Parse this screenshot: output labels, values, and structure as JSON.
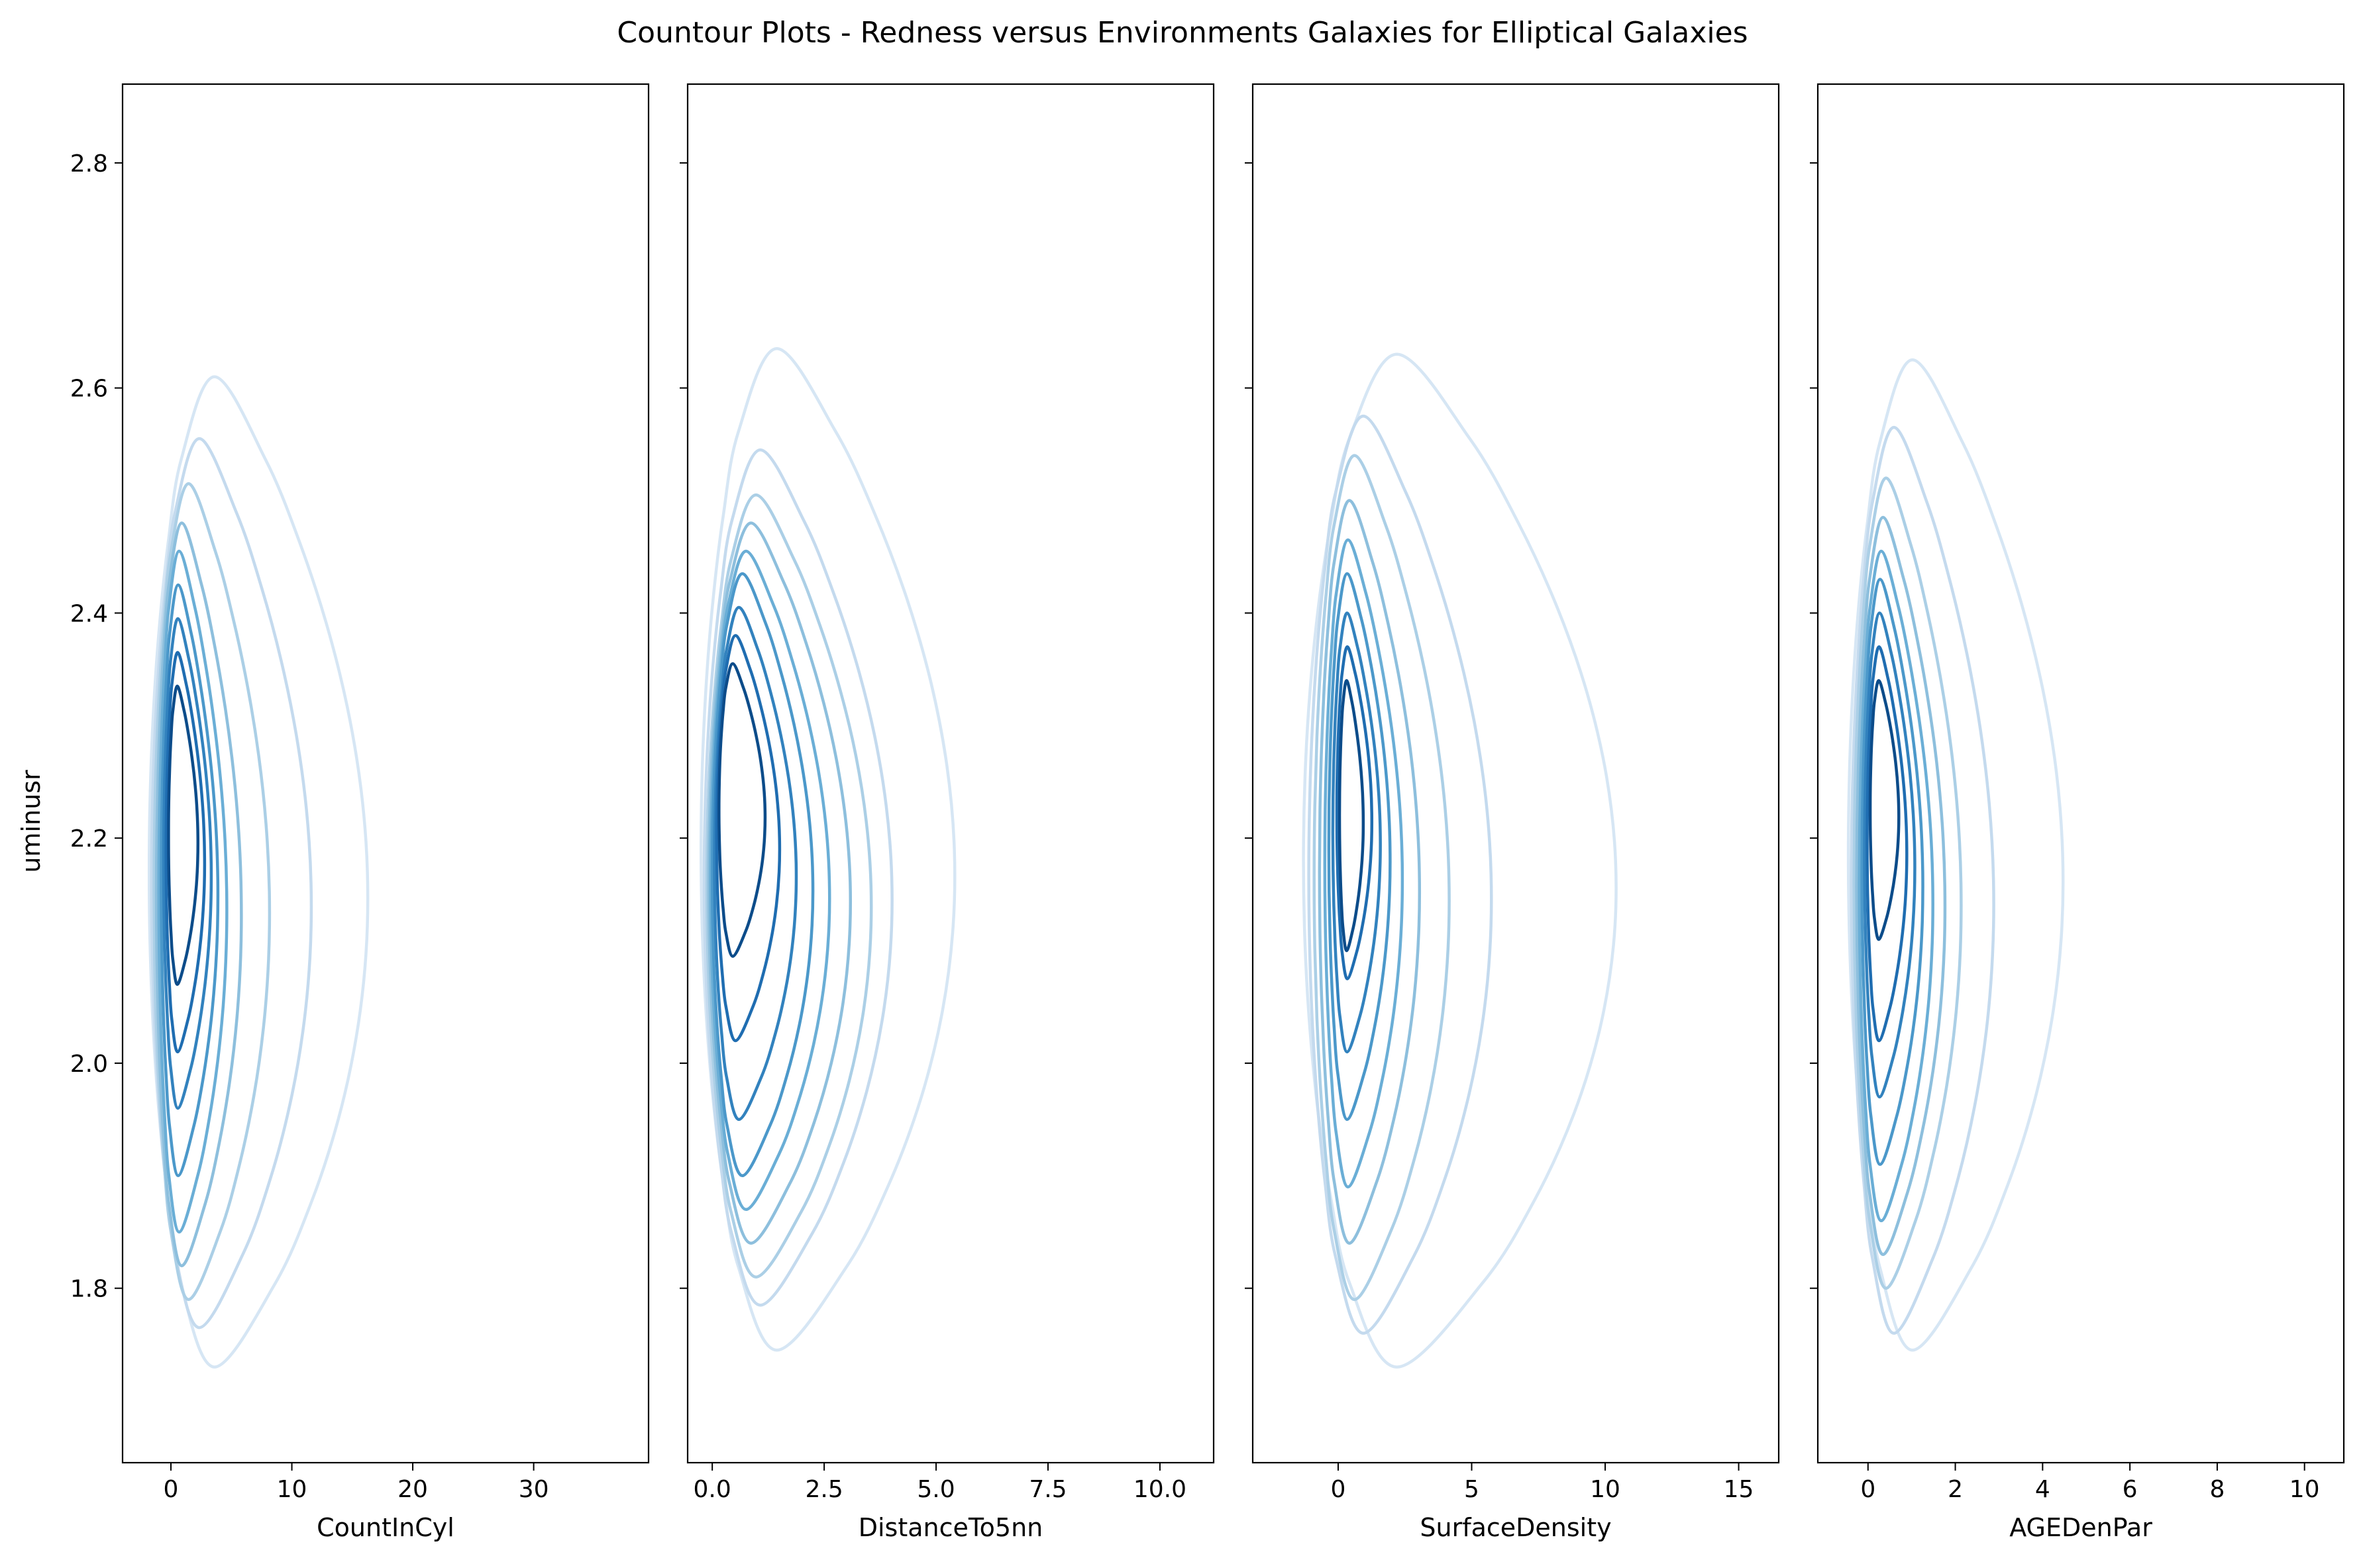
{
  "chart_data": {
    "type": "contour",
    "title": "Countour Plots - Redness versus Environments Galaxies  for Elliptical Galaxies",
    "ylabel": "uminusr",
    "sharey": true,
    "ylim": [
      1.645,
      2.87
    ],
    "yticks": [
      "1.8",
      "2.0",
      "2.2",
      "2.4",
      "2.6",
      "2.8"
    ],
    "ytick_values": [
      1.8,
      2.0,
      2.2,
      2.4,
      2.6,
      2.8
    ],
    "colormap": "Blues",
    "n_levels": 10,
    "level_colors": [
      "#e6f0f9",
      "#d6e6f4",
      "#c4daee",
      "#abcfe6",
      "#8dbfdd",
      "#6aaed6",
      "#4b98ca",
      "#3282be",
      "#1f6db1",
      "#0c4c8a"
    ],
    "grid": false,
    "legend": "none",
    "panels": [
      {
        "xlabel": "CountInCyl",
        "xlim": [
          -4,
          39.5
        ],
        "xticks": [
          "0",
          "10",
          "20",
          "30"
        ],
        "xtick_values": [
          0,
          10,
          20,
          30
        ],
        "contours": [
          {
            "y_range": [
              1.73,
              2.61
            ],
            "x_max": 17.5,
            "x_min": -1.8
          },
          {
            "y_range": [
              1.765,
              2.555
            ],
            "x_max": 12.5,
            "x_min": -1.6
          },
          {
            "y_range": [
              1.79,
              2.515
            ],
            "x_max": 8.8,
            "x_min": -1.4
          },
          {
            "y_range": [
              1.82,
              2.48
            ],
            "x_max": 6.3,
            "x_min": -1.2
          },
          {
            "y_range": [
              1.85,
              2.455
            ],
            "x_max": 5.0,
            "x_min": -1.0
          },
          {
            "y_range": [
              1.9,
              2.425
            ],
            "x_max": 4.2,
            "x_min": -0.8
          },
          {
            "y_range": [
              1.96,
              2.395
            ],
            "x_max": 3.6,
            "x_min": -0.6
          },
          {
            "y_range": [
              2.01,
              2.365
            ],
            "x_max": 3.0,
            "x_min": -0.4
          },
          {
            "y_range": [
              2.07,
              2.335
            ],
            "x_max": 2.4,
            "x_min": -0.2
          }
        ]
      },
      {
        "xlabel": "DistanceTo5nn",
        "xlim": [
          -0.55,
          11.2
        ],
        "xticks": [
          "0.0",
          "2.5",
          "5.0",
          "7.5",
          "10.0"
        ],
        "xtick_values": [
          0,
          2.5,
          5,
          7.5,
          10
        ],
        "contours": [
          {
            "y_range": [
              1.745,
              2.635
            ],
            "x_max": 5.8,
            "x_min": -0.25
          },
          {
            "y_range": [
              1.785,
              2.545
            ],
            "x_max": 4.3,
            "x_min": -0.18
          },
          {
            "y_range": [
              1.81,
              2.505
            ],
            "x_max": 3.8,
            "x_min": -0.12
          },
          {
            "y_range": [
              1.84,
              2.48
            ],
            "x_max": 3.3,
            "x_min": -0.08
          },
          {
            "y_range": [
              1.87,
              2.455
            ],
            "x_max": 2.8,
            "x_min": -0.04
          },
          {
            "y_range": [
              1.9,
              2.435
            ],
            "x_max": 2.4,
            "x_min": 0.0
          },
          {
            "y_range": [
              1.95,
              2.405
            ],
            "x_max": 2.0,
            "x_min": 0.05
          },
          {
            "y_range": [
              2.02,
              2.38
            ],
            "x_max": 1.6,
            "x_min": 0.1
          },
          {
            "y_range": [
              2.095,
              2.355
            ],
            "x_max": 1.25,
            "x_min": 0.15
          }
        ]
      },
      {
        "xlabel": "SurfaceDensity",
        "xlim": [
          -3.2,
          16.5
        ],
        "xticks": [
          "0",
          "5",
          "10",
          "15"
        ],
        "xtick_values": [
          0,
          5,
          10,
          15
        ],
        "contours": [
          {
            "y_range": [
              1.73,
              2.63
            ],
            "x_max": 11.2,
            "x_min": -1.3
          },
          {
            "y_range": [
              1.76,
              2.575
            ],
            "x_max": 6.2,
            "x_min": -1.1
          },
          {
            "y_range": [
              1.79,
              2.54
            ],
            "x_max": 4.5,
            "x_min": -0.9
          },
          {
            "y_range": [
              1.84,
              2.5
            ],
            "x_max": 3.3,
            "x_min": -0.7
          },
          {
            "y_range": [
              1.89,
              2.465
            ],
            "x_max": 2.6,
            "x_min": -0.5
          },
          {
            "y_range": [
              1.95,
              2.435
            ],
            "x_max": 2.1,
            "x_min": -0.35
          },
          {
            "y_range": [
              2.01,
              2.4
            ],
            "x_max": 1.7,
            "x_min": -0.2
          },
          {
            "y_range": [
              2.075,
              2.37
            ],
            "x_max": 1.35,
            "x_min": -0.05
          },
          {
            "y_range": [
              2.1,
              2.34
            ],
            "x_max": 1.0,
            "x_min": 0.05
          }
        ]
      },
      {
        "xlabel": "AGEDenPar",
        "xlim": [
          -1.15,
          10.9
        ],
        "xticks": [
          "0",
          "2",
          "4",
          "6",
          "8",
          "10"
        ],
        "xtick_values": [
          0,
          2,
          4,
          6,
          8,
          10
        ],
        "contours": [
          {
            "y_range": [
              1.745,
              2.625
            ],
            "x_max": 4.8,
            "x_min": -0.45
          },
          {
            "y_range": [
              1.76,
              2.565
            ],
            "x_max": 3.1,
            "x_min": -0.38
          },
          {
            "y_range": [
              1.8,
              2.52
            ],
            "x_max": 2.3,
            "x_min": -0.32
          },
          {
            "y_range": [
              1.83,
              2.485
            ],
            "x_max": 1.9,
            "x_min": -0.26
          },
          {
            "y_range": [
              1.86,
              2.455
            ],
            "x_max": 1.6,
            "x_min": -0.2
          },
          {
            "y_range": [
              1.91,
              2.43
            ],
            "x_max": 1.35,
            "x_min": -0.14
          },
          {
            "y_range": [
              1.97,
              2.4
            ],
            "x_max": 1.15,
            "x_min": -0.08
          },
          {
            "y_range": [
              2.02,
              2.37
            ],
            "x_max": 0.95,
            "x_min": -0.02
          },
          {
            "y_range": [
              2.11,
              2.34
            ],
            "x_max": 0.75,
            "x_min": 0.05
          }
        ]
      }
    ]
  }
}
